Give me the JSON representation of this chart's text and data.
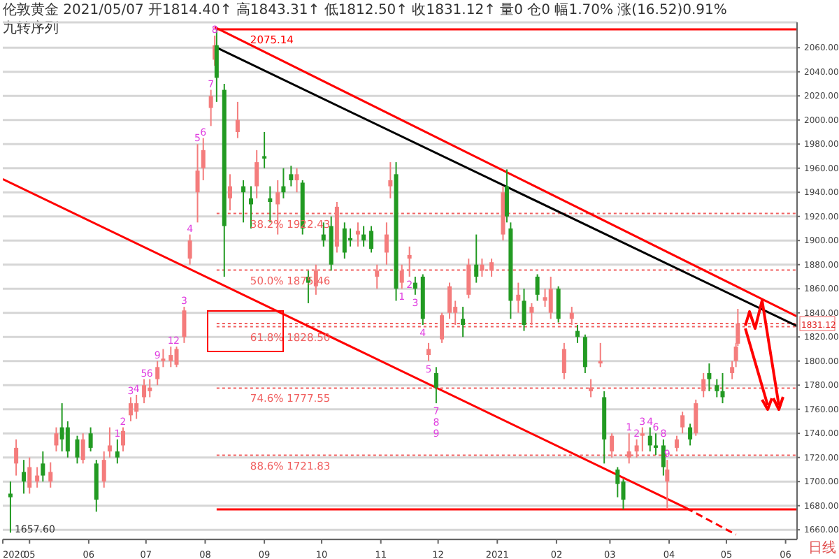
{
  "chart_data": {
    "type": "candlestick",
    "title": "伦敦黄金 2021/05/07 开1814.40↑ 高1843.31↑ 低1812.50↑ 收1831.12↑ 量0 仓0 幅1.70% 涨(16.52)0.91%",
    "subtitle": "九转序列",
    "x": [
      "2020-04-21",
      "2020-04-24",
      "2020-04-28",
      "2020-05-01",
      "2020-05-05",
      "2020-05-08",
      "2020-05-12",
      "2020-05-15",
      "2020-05-18",
      "2020-05-21",
      "2020-05-26",
      "2020-05-29",
      "2020-06-02",
      "2020-06-05",
      "2020-06-09",
      "2020-06-12",
      "2020-06-16",
      "2020-06-19",
      "2020-06-23",
      "2020-06-26",
      "2020-06-30",
      "2020-07-03",
      "2020-07-07",
      "2020-07-10",
      "2020-07-14",
      "2020-07-17",
      "2020-07-21",
      "2020-07-24",
      "2020-07-28",
      "2020-07-31",
      "2020-08-04",
      "2020-08-06",
      "2020-08-07",
      "2020-08-11",
      "2020-08-14",
      "2020-08-18",
      "2020-08-21",
      "2020-08-25",
      "2020-08-28",
      "2020-09-01",
      "2020-09-04",
      "2020-09-08",
      "2020-09-11",
      "2020-09-15",
      "2020-09-18",
      "2020-09-21",
      "2020-09-24",
      "2020-09-28",
      "2020-10-02",
      "2020-10-06",
      "2020-10-09",
      "2020-10-13",
      "2020-10-16",
      "2020-10-20",
      "2020-10-23",
      "2020-10-27",
      "2020-10-30",
      "2020-11-04",
      "2020-11-06",
      "2020-11-09",
      "2020-11-12",
      "2020-11-16",
      "2020-11-19",
      "2020-11-23",
      "2020-11-26",
      "2020-11-30",
      "2020-12-03",
      "2020-12-07",
      "2020-12-10",
      "2020-12-14",
      "2020-12-17",
      "2020-12-21",
      "2020-12-24",
      "2020-12-29",
      "2021-01-04",
      "2021-01-06",
      "2021-01-08",
      "2021-01-12",
      "2021-01-15",
      "2021-01-19",
      "2021-01-22",
      "2021-01-26",
      "2021-01-29",
      "2021-02-02",
      "2021-02-05",
      "2021-02-09",
      "2021-02-12",
      "2021-02-16",
      "2021-02-19",
      "2021-02-24",
      "2021-02-26",
      "2021-03-02",
      "2021-03-05",
      "2021-03-08",
      "2021-03-11",
      "2021-03-15",
      "2021-03-18",
      "2021-03-22",
      "2021-03-25",
      "2021-03-29",
      "2021-03-31",
      "2021-04-05",
      "2021-04-08",
      "2021-04-12",
      "2021-04-15",
      "2021-04-19",
      "2021-04-22",
      "2021-04-26",
      "2021-04-29",
      "2021-05-04",
      "2021-05-06",
      "2021-05-07"
    ],
    "ohlc": [
      [
        1690,
        1700,
        1657.6,
        1687
      ],
      [
        1715,
        1735,
        1705,
        1728
      ],
      [
        1708,
        1718,
        1690,
        1700
      ],
      [
        1695,
        1720,
        1690,
        1712
      ],
      [
        1700,
        1712,
        1695,
        1705
      ],
      [
        1715,
        1725,
        1700,
        1705
      ],
      [
        1700,
        1716,
        1695,
        1708
      ],
      [
        1730,
        1745,
        1725,
        1740
      ],
      [
        1745,
        1765,
        1725,
        1735
      ],
      [
        1745,
        1750,
        1720,
        1725
      ],
      [
        1735,
        1738,
        1715,
        1720
      ],
      [
        1718,
        1740,
        1715,
        1735
      ],
      [
        1740,
        1745,
        1725,
        1728
      ],
      [
        1715,
        1718,
        1675,
        1685
      ],
      [
        1700,
        1725,
        1695,
        1718
      ],
      [
        1725,
        1745,
        1720,
        1730
      ],
      [
        1725,
        1735,
        1715,
        1720
      ],
      [
        1730,
        1745,
        1725,
        1742
      ],
      [
        1755,
        1770,
        1750,
        1765
      ],
      [
        1758,
        1772,
        1752,
        1765
      ],
      [
        1770,
        1785,
        1765,
        1780
      ],
      [
        1775,
        1785,
        1770,
        1778
      ],
      [
        1785,
        1800,
        1780,
        1795
      ],
      [
        1800,
        1810,
        1795,
        1802
      ],
      [
        1800,
        1812,
        1795,
        1805
      ],
      [
        1797,
        1812,
        1795,
        1810
      ],
      [
        1820,
        1845,
        1815,
        1842
      ],
      [
        1885,
        1905,
        1880,
        1900
      ],
      [
        1940,
        1980,
        1915,
        1958
      ],
      [
        1960,
        1985,
        1950,
        1975
      ],
      [
        2010,
        2025,
        1995,
        2020
      ],
      [
        2050,
        2070,
        2045,
        2062
      ],
      [
        2062,
        2075.14,
        2015,
        2035
      ],
      [
        2025,
        2030,
        1870,
        1912
      ],
      [
        1935,
        1955,
        1925,
        1945
      ],
      [
        1990,
        2015,
        1985,
        2000
      ],
      [
        1945,
        1950,
        1915,
        1940
      ],
      [
        1935,
        1945,
        1910,
        1930
      ],
      [
        1945,
        1975,
        1935,
        1965
      ],
      [
        1970,
        1990,
        1960,
        1968
      ],
      [
        1935,
        1945,
        1915,
        1932
      ],
      [
        1930,
        1950,
        1905,
        1940
      ],
      [
        1945,
        1960,
        1935,
        1940
      ],
      [
        1955,
        1962,
        1945,
        1950
      ],
      [
        1950,
        1960,
        1940,
        1955
      ],
      [
        1948,
        1950,
        1905,
        1910
      ],
      [
        1870,
        1875,
        1848,
        1865
      ],
      [
        1862,
        1880,
        1855,
        1875
      ],
      [
        1905,
        1915,
        1895,
        1900
      ],
      [
        1912,
        1920,
        1875,
        1880
      ],
      [
        1895,
        1932,
        1890,
        1928
      ],
      [
        1910,
        1915,
        1885,
        1890
      ],
      [
        1902,
        1910,
        1895,
        1900
      ],
      [
        1905,
        1915,
        1895,
        1908
      ],
      [
        1905,
        1912,
        1895,
        1900
      ],
      [
        1908,
        1912,
        1890,
        1893
      ],
      [
        1870,
        1880,
        1860,
        1875
      ],
      [
        1890,
        1915,
        1880,
        1905
      ],
      [
        1945,
        1965,
        1935,
        1950
      ],
      [
        1955,
        1965,
        1850,
        1860
      ],
      [
        1865,
        1880,
        1860,
        1875
      ],
      [
        1885,
        1895,
        1870,
        1888
      ],
      [
        1865,
        1870,
        1855,
        1860
      ],
      [
        1870,
        1872,
        1830,
        1835
      ],
      [
        1805,
        1815,
        1800,
        1810
      ],
      [
        1790,
        1795,
        1765,
        1778
      ],
      [
        1818,
        1840,
        1815,
        1838
      ],
      [
        1840,
        1865,
        1835,
        1862
      ],
      [
        1840,
        1850,
        1830,
        1845
      ],
      [
        1835,
        1845,
        1820,
        1830
      ],
      [
        1855,
        1885,
        1852,
        1880
      ],
      [
        1880,
        1905,
        1865,
        1870
      ],
      [
        1875,
        1885,
        1870,
        1880
      ],
      [
        1875,
        1885,
        1870,
        1882
      ],
      [
        1905,
        1945,
        1900,
        1940
      ],
      [
        1945,
        1959,
        1915,
        1920
      ],
      [
        1910,
        1915,
        1835,
        1850
      ],
      [
        1850,
        1865,
        1840,
        1855
      ],
      [
        1850,
        1860,
        1825,
        1830
      ],
      [
        1840,
        1848,
        1830,
        1845
      ],
      [
        1870,
        1872,
        1850,
        1855
      ],
      [
        1850,
        1860,
        1845,
        1853
      ],
      [
        1840,
        1870,
        1835,
        1860
      ],
      [
        1860,
        1862,
        1832,
        1835
      ],
      [
        1790,
        1815,
        1785,
        1810
      ],
      [
        1835,
        1845,
        1830,
        1840
      ],
      [
        1825,
        1830,
        1815,
        1820
      ],
      [
        1820,
        1822,
        1790,
        1795
      ],
      [
        1775,
        1785,
        1770,
        1778
      ],
      [
        1798,
        1815,
        1795,
        1800
      ],
      [
        1770,
        1775,
        1715,
        1735
      ],
      [
        1725,
        1740,
        1720,
        1738
      ],
      [
        1710,
        1712,
        1687,
        1698
      ],
      [
        1700,
        1702,
        1677,
        1685
      ],
      [
        1720,
        1740,
        1715,
        1725
      ],
      [
        1725,
        1735,
        1720,
        1730
      ],
      [
        1738,
        1745,
        1725,
        1740
      ],
      [
        1738,
        1745,
        1725,
        1730
      ],
      [
        1730,
        1740,
        1722,
        1728
      ],
      [
        1730,
        1735,
        1705,
        1712
      ],
      [
        1700,
        1718,
        1677,
        1710
      ],
      [
        1728,
        1738,
        1725,
        1735
      ],
      [
        1745,
        1758,
        1740,
        1755
      ],
      [
        1745,
        1748,
        1730,
        1735
      ],
      [
        1740,
        1768,
        1738,
        1765
      ],
      [
        1775,
        1790,
        1770,
        1785
      ],
      [
        1790,
        1798,
        1775,
        1785
      ],
      [
        1780,
        1785,
        1770,
        1775
      ],
      [
        1775,
        1790,
        1765,
        1770
      ],
      [
        1790,
        1800,
        1785,
        1795
      ],
      [
        1800,
        1815,
        1795,
        1812
      ],
      [
        1814.4,
        1843.31,
        1812.5,
        1831.12
      ]
    ],
    "colors": [
      "#229a22",
      "#f47c7c",
      "#229a22",
      "#f47c7c",
      "#f47c7c",
      "#229a22",
      "#f47c7c",
      "#f47c7c",
      "#229a22",
      "#229a22",
      "#229a22",
      "#f47c7c",
      "#229a22",
      "#229a22",
      "#f47c7c",
      "#f47c7c",
      "#229a22",
      "#f47c7c",
      "#f47c7c",
      "#f47c7c",
      "#f47c7c",
      "#f47c7c",
      "#f47c7c",
      "#f47c7c",
      "#f47c7c",
      "#f47c7c",
      "#f47c7c",
      "#f47c7c",
      "#f47c7c",
      "#f47c7c",
      "#f47c7c",
      "#f47c7c",
      "#229a22",
      "#229a22",
      "#f47c7c",
      "#f47c7c",
      "#229a22",
      "#229a22",
      "#f47c7c",
      "#229a22",
      "#229a22",
      "#f47c7c",
      "#229a22",
      "#229a22",
      "#f47c7c",
      "#229a22",
      "#229a22",
      "#f47c7c",
      "#229a22",
      "#229a22",
      "#f47c7c",
      "#229a22",
      "#229a22",
      "#f47c7c",
      "#229a22",
      "#229a22",
      "#f47c7c",
      "#f47c7c",
      "#f47c7c",
      "#229a22",
      "#f47c7c",
      "#f47c7c",
      "#229a22",
      "#229a22",
      "#f47c7c",
      "#229a22",
      "#f47c7c",
      "#f47c7c",
      "#f47c7c",
      "#229a22",
      "#f47c7c",
      "#229a22",
      "#f47c7c",
      "#f47c7c",
      "#f47c7c",
      "#229a22",
      "#229a22",
      "#f47c7c",
      "#229a22",
      "#f47c7c",
      "#229a22",
      "#f47c7c",
      "#f47c7c",
      "#229a22",
      "#f47c7c",
      "#f47c7c",
      "#229a22",
      "#229a22",
      "#f47c7c",
      "#f47c7c",
      "#229a22",
      "#f47c7c",
      "#229a22",
      "#229a22",
      "#f47c7c",
      "#f47c7c",
      "#f47c7c",
      "#229a22",
      "#229a22",
      "#229a22",
      "#f47c7c",
      "#f47c7c",
      "#f47c7c",
      "#229a22",
      "#f47c7c",
      "#f47c7c",
      "#229a22",
      "#229a22",
      "#229a22",
      "#f47c7c",
      "#f47c7c",
      "#f47c7c"
    ],
    "series": [
      {
        "type": "line",
        "x": [
          "2020-08-07",
          "2021-06-07"
        ],
        "values": [
          2060,
          1829
        ],
        "color": "#000000"
      },
      {
        "type": "line",
        "x": [
          "2020-08-06",
          "2021-06-07"
        ],
        "values": [
          2077,
          1837
        ],
        "color": "#ff0000"
      },
      {
        "type": "line",
        "x": [
          "2020-04-17",
          "2021-04-10"
        ],
        "values": [
          1951,
          1678
        ],
        "color": "#ff0000"
      },
      {
        "type": "line",
        "x": [
          "2021-04-10",
          "2021-05-06"
        ],
        "values": [
          1678,
          1656
        ],
        "color": "#ff0000",
        "line_style": "dashed"
      }
    ],
    "xlim": [
      "2020-04-17",
      "2021-06-07"
    ],
    "xticks": [
      {
        "value": "2020-04-17",
        "label": "2020"
      },
      {
        "value": "2020-05-01",
        "label": "05"
      },
      {
        "value": "2020-06-01",
        "label": "06"
      },
      {
        "value": "2020-07-01",
        "label": "07"
      },
      {
        "value": "2020-08-01",
        "label": "08"
      },
      {
        "value": "2020-09-01",
        "label": "09"
      },
      {
        "value": "2020-10-01",
        "label": "10"
      },
      {
        "value": "2020-11-01",
        "label": "11"
      },
      {
        "value": "2020-12-01",
        "label": "12"
      },
      {
        "value": "2021-01-01",
        "label": "2021"
      },
      {
        "value": "2021-02-01",
        "label": "02"
      },
      {
        "value": "2021-03-01",
        "label": "03"
      },
      {
        "value": "2021-04-01",
        "label": "04"
      },
      {
        "value": "2021-05-01",
        "label": "05"
      },
      {
        "value": "2021-06-01",
        "label": "06"
      }
    ],
    "ylim": [
      1652,
      2081
    ],
    "yticks": [
      {
        "value": 1660,
        "label": "1660.00"
      },
      {
        "value": 1680,
        "label": "1680.00"
      },
      {
        "value": 1700,
        "label": "1700.00"
      },
      {
        "value": 1720,
        "label": "1720.00"
      },
      {
        "value": 1740,
        "label": "1740.00"
      },
      {
        "value": 1760,
        "label": "1760.00"
      },
      {
        "value": 1780,
        "label": "1780.00"
      },
      {
        "value": 1800,
        "label": "1800.00"
      },
      {
        "value": 1820,
        "label": "1820.00"
      },
      {
        "value": 1840,
        "label": "1840.00"
      },
      {
        "value": 1860,
        "label": "1860.00"
      },
      {
        "value": 1880,
        "label": "1880.00"
      },
      {
        "value": 1900,
        "label": "1900.00"
      },
      {
        "value": 1920,
        "label": "1920.00"
      },
      {
        "value": 1940,
        "label": "1940.00"
      },
      {
        "value": 1960,
        "label": "1960.00"
      },
      {
        "value": 1980,
        "label": "1980.00"
      },
      {
        "value": 2000,
        "label": "2000.00"
      },
      {
        "value": 2020,
        "label": "2020.00"
      },
      {
        "value": 2040,
        "label": "2040.00"
      },
      {
        "value": 2060,
        "label": "2060.00"
      }
    ],
    "grid": "y",
    "marker": "none",
    "ref_lines": [
      {
        "axis": "y",
        "value": 2075.14,
        "label": "2075.14",
        "color": "#ff0000",
        "line_style": "solid"
      },
      {
        "axis": "y",
        "value": 1922.43,
        "label": "38.2% 1922.43",
        "color": "#f06060",
        "line_style": "dotted"
      },
      {
        "axis": "y",
        "value": 1875.46,
        "label": "50.0% 1875.46",
        "color": "#f06060",
        "line_style": "dotted"
      },
      {
        "axis": "y",
        "value": 1828.5,
        "label": "61.8% 1828.50",
        "color": "#f06060",
        "line_style": "dotted"
      },
      {
        "axis": "y",
        "value": 1777.55,
        "label": "74.6% 1777.55",
        "color": "#f06060",
        "line_style": "dotted"
      },
      {
        "axis": "y",
        "value": 1721.83,
        "label": "88.6% 1721.83",
        "color": "#f06060",
        "line_style": "dotted"
      },
      {
        "axis": "y",
        "value": 1831.12,
        "label": "1831.12",
        "color": "#f06060",
        "line_style": "dotted"
      },
      {
        "axis": "y",
        "value": 1677,
        "label": null,
        "color": "#ff0000",
        "line_style": "solid"
      }
    ],
    "annotations": [
      "日线",
      {
        "text": "1657.60",
        "x": "2020-04-21",
        "y": 1657.6
      },
      {
        "text": "1",
        "x": "2020-06-16",
        "y": 1735
      },
      {
        "text": "2",
        "x": "2020-06-19",
        "y": 1745
      },
      {
        "text": "3",
        "x": "2020-06-23",
        "y": 1770
      },
      {
        "text": "4",
        "x": "2020-06-26",
        "y": 1772
      },
      {
        "text": "5",
        "x": "2020-06-30",
        "y": 1785
      },
      {
        "text": "6",
        "x": "2020-07-03",
        "y": 1785
      },
      {
        "text": "9",
        "x": "2020-07-07",
        "y": 1800
      },
      {
        "text": "1",
        "x": "2020-07-14",
        "y": 1812
      },
      {
        "text": "2",
        "x": "2020-07-17",
        "y": 1812
      },
      {
        "text": "3",
        "x": "2020-07-21",
        "y": 1845
      },
      {
        "text": "4",
        "x": "2020-07-24",
        "y": 1905
      },
      {
        "text": "5",
        "x": "2020-07-28",
        "y": 1980
      },
      {
        "text": "6",
        "x": "2020-07-31",
        "y": 1985
      },
      {
        "text": "7",
        "x": "2020-08-04",
        "y": 2025
      },
      {
        "text": "8",
        "x": "2020-08-06",
        "y": 2070
      },
      {
        "text": "1",
        "x": "2020-11-12",
        "y": 1860
      },
      {
        "text": "2",
        "x": "2020-11-16",
        "y": 1870
      },
      {
        "text": "3",
        "x": "2020-11-19",
        "y": 1855
      },
      {
        "text": "4",
        "x": "2020-11-23",
        "y": 1830
      },
      {
        "text": "5",
        "x": "2020-11-26",
        "y": 1800
      },
      {
        "text": "7",
        "x": "2020-11-30",
        "y": 1765
      },
      {
        "text": "8",
        "x": "2020-11-30",
        "y": 1765
      },
      {
        "text": "9",
        "x": "2020-11-30",
        "y": 1765
      },
      {
        "text": "1",
        "x": "2021-03-11",
        "y": 1740
      },
      {
        "text": "2",
        "x": "2021-03-15",
        "y": 1735
      },
      {
        "text": "3",
        "x": "2021-03-18",
        "y": 1745
      },
      {
        "text": "4",
        "x": "2021-03-22",
        "y": 1745
      },
      {
        "text": "6",
        "x": "2021-03-25",
        "y": 1740
      },
      {
        "text": "8",
        "x": "2021-03-29",
        "y": 1735
      },
      {
        "text": "9",
        "x": "2021-03-31",
        "y": 1718
      }
    ]
  }
}
